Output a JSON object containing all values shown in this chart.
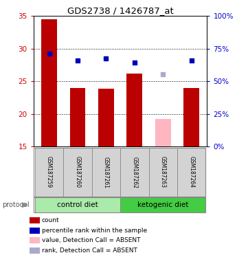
{
  "title": "GDS2738 / 1426787_at",
  "samples": [
    "GSM187259",
    "GSM187260",
    "GSM187261",
    "GSM187262",
    "GSM187263",
    "GSM187264"
  ],
  "bar_values": [
    34.5,
    24.0,
    23.8,
    26.2,
    null,
    24.0
  ],
  "bar_absent_value": 19.2,
  "bar_absent_index": 4,
  "bar_color": "#bb0000",
  "bar_absent_color": "#ffb6c1",
  "rank_values": [
    29.2,
    28.2,
    28.5,
    27.8,
    null,
    28.2
  ],
  "rank_absent_value": 26.1,
  "rank_absent_index": 4,
  "rank_color": "#0000bb",
  "rank_absent_color": "#aaaacc",
  "ylim_left": [
    15,
    35
  ],
  "ylim_right": [
    0,
    100
  ],
  "yticks_left": [
    15,
    20,
    25,
    30,
    35
  ],
  "yticks_right": [
    0,
    25,
    50,
    75,
    100
  ],
  "ytick_labels_right": [
    "0%",
    "25%",
    "50%",
    "75%",
    "100%"
  ],
  "bar_width": 0.55,
  "protocol_groups": [
    {
      "label": "control diet",
      "indices": [
        0,
        1,
        2
      ],
      "color": "#aaeaaa"
    },
    {
      "label": "ketogenic diet",
      "indices": [
        3,
        4,
        5
      ],
      "color": "#44cc44"
    }
  ],
  "protocol_label": "protocol",
  "legend_items": [
    {
      "label": "count",
      "color": "#bb0000"
    },
    {
      "label": "percentile rank within the sample",
      "color": "#0000bb"
    },
    {
      "label": "value, Detection Call = ABSENT",
      "color": "#ffb6c1"
    },
    {
      "label": "rank, Detection Call = ABSENT",
      "color": "#aaaacc"
    }
  ],
  "left_tick_color": "#cc0000",
  "right_tick_color": "#0000cc",
  "grid_yticks": [
    20,
    25,
    30
  ],
  "sample_box_color": "#d3d3d3",
  "sample_box_edge_color": "#888888"
}
